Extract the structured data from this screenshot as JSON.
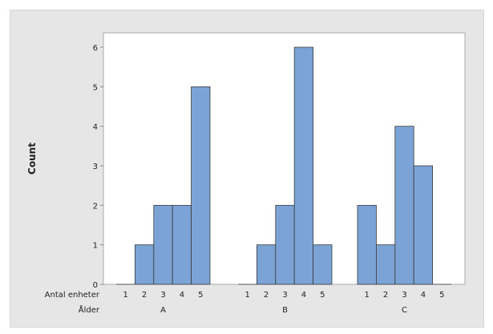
{
  "chart_data": {
    "type": "bar",
    "ylabel": "Count",
    "ylim": [
      0,
      6.4
    ],
    "yticks": [
      0,
      1,
      2,
      3,
      4,
      5,
      6
    ],
    "row_labels": [
      "Antal enheter",
      "Ålder"
    ],
    "groups": [
      {
        "name": "A",
        "categories": [
          "1",
          "2",
          "3",
          "4",
          "5"
        ],
        "values": [
          0,
          1,
          2,
          2,
          5
        ]
      },
      {
        "name": "B",
        "categories": [
          "1",
          "2",
          "3",
          "4",
          "5"
        ],
        "values": [
          0,
          1,
          2,
          6,
          1
        ]
      },
      {
        "name": "C",
        "categories": [
          "1",
          "2",
          "3",
          "4",
          "5"
        ],
        "values": [
          2,
          1,
          4,
          3,
          0
        ]
      }
    ],
    "bar_color": "#7ba3d6",
    "grid": false,
    "legend": "none"
  }
}
